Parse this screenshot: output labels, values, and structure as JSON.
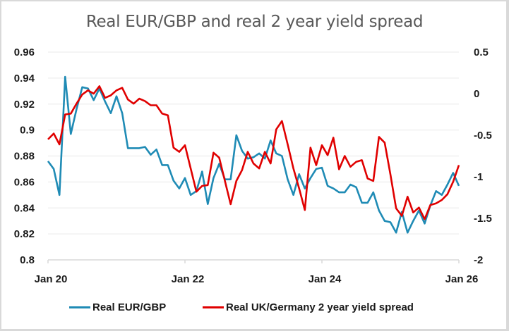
{
  "chart_data": {
    "type": "line",
    "title": "Real EUR/GBP and real 2 year yield spread",
    "xlabel": "",
    "ylabel_left": "",
    "ylabel_right": "",
    "x_start": "Jan 2020",
    "x_frequency": "monthly",
    "x_tick_labels": [
      "Jan 20",
      "Jan 22",
      "Jan 24",
      "Jan 26"
    ],
    "y_left": {
      "range": [
        0.8,
        0.96
      ],
      "ticks": [
        "0.96",
        "0.94",
        "0.92",
        "0.9",
        "0.88",
        "0.86",
        "0.84",
        "0.82",
        "0.8"
      ]
    },
    "y_right": {
      "range": [
        -2,
        0.5
      ],
      "ticks": [
        "0.5",
        "0",
        "-0.5",
        "-1",
        "-1.5",
        "-2"
      ]
    },
    "grid": true,
    "legend_position": "bottom",
    "series": [
      {
        "name": "Real EUR/GBP",
        "axis": "left",
        "color": "#1f8bb5",
        "values": [
          0.876,
          0.87,
          0.85,
          0.941,
          0.897,
          0.916,
          0.933,
          0.932,
          0.923,
          0.932,
          0.922,
          0.913,
          0.926,
          0.913,
          0.886,
          0.886,
          0.886,
          0.887,
          0.881,
          0.885,
          0.873,
          0.873,
          0.861,
          0.855,
          0.863,
          0.85,
          0.853,
          0.868,
          0.843,
          0.863,
          0.874,
          0.862,
          0.862,
          0.896,
          0.884,
          0.878,
          0.879,
          0.882,
          0.878,
          0.892,
          0.882,
          0.88,
          0.862,
          0.85,
          0.866,
          0.855,
          0.863,
          0.87,
          0.871,
          0.857,
          0.855,
          0.852,
          0.852,
          0.858,
          0.856,
          0.844,
          0.844,
          0.852,
          0.838,
          0.83,
          0.829,
          0.821,
          0.837,
          0.821,
          0.83,
          0.838,
          0.828,
          0.842,
          0.853,
          0.85,
          0.858,
          0.867,
          0.857
        ]
      },
      {
        "name": "Real UK/Germany 2 year yield spread",
        "axis": "right",
        "color": "#e00000",
        "values": [
          -0.55,
          -0.48,
          -0.61,
          -0.25,
          -0.24,
          -0.12,
          -0.01,
          0.04,
          0.0,
          0.09,
          -0.05,
          -0.02,
          0.04,
          0.07,
          -0.07,
          -0.12,
          -0.06,
          -0.09,
          -0.14,
          -0.14,
          -0.24,
          -0.26,
          -0.65,
          -0.7,
          -0.62,
          -0.9,
          -1.18,
          -1.11,
          -1.1,
          -0.71,
          -0.77,
          -1.05,
          -1.33,
          -1.05,
          -0.92,
          -0.7,
          -0.84,
          -0.9,
          -0.7,
          -0.84,
          -0.43,
          -0.33,
          -0.61,
          -0.9,
          -1.14,
          -1.4,
          -0.65,
          -0.86,
          -0.62,
          -0.74,
          -0.53,
          -0.91,
          -0.75,
          -0.88,
          -0.82,
          -0.8,
          -1.02,
          -1.05,
          -0.52,
          -0.59,
          -0.97,
          -1.38,
          -1.47,
          -1.24,
          -1.43,
          -1.37,
          -1.51,
          -1.34,
          -1.32,
          -1.28,
          -1.21,
          -1.06,
          -0.86
        ]
      }
    ]
  },
  "legend": {
    "items": [
      {
        "label": "Real EUR/GBP",
        "color": "#1f8bb5"
      },
      {
        "label": "Real UK/Germany 2 year yield spread",
        "color": "#e00000"
      }
    ]
  }
}
